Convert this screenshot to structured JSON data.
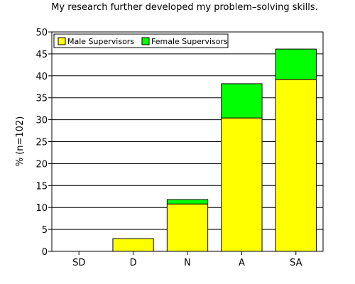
{
  "chart_data": {
    "type": "bar",
    "stacked": true,
    "title": "My research further developed my problem–solving skills.",
    "xlabel": "",
    "ylabel": "% (n=102)",
    "categories": [
      "SD",
      "D",
      "N",
      "A",
      "SA"
    ],
    "series": [
      {
        "name": "Male Supervisors",
        "color": "#ffff00",
        "values": [
          0,
          2.9,
          10.8,
          30.4,
          39.2
        ]
      },
      {
        "name": "Female Supervisors",
        "color": "#00ff00",
        "values": [
          0,
          0,
          1.0,
          7.8,
          6.9
        ]
      }
    ],
    "ylim": [
      0,
      50
    ],
    "yticks": [
      "0",
      "5",
      "10",
      "15",
      "20",
      "25",
      "30",
      "35",
      "40",
      "45",
      "50"
    ],
    "grid": true,
    "legend": "top-left"
  }
}
